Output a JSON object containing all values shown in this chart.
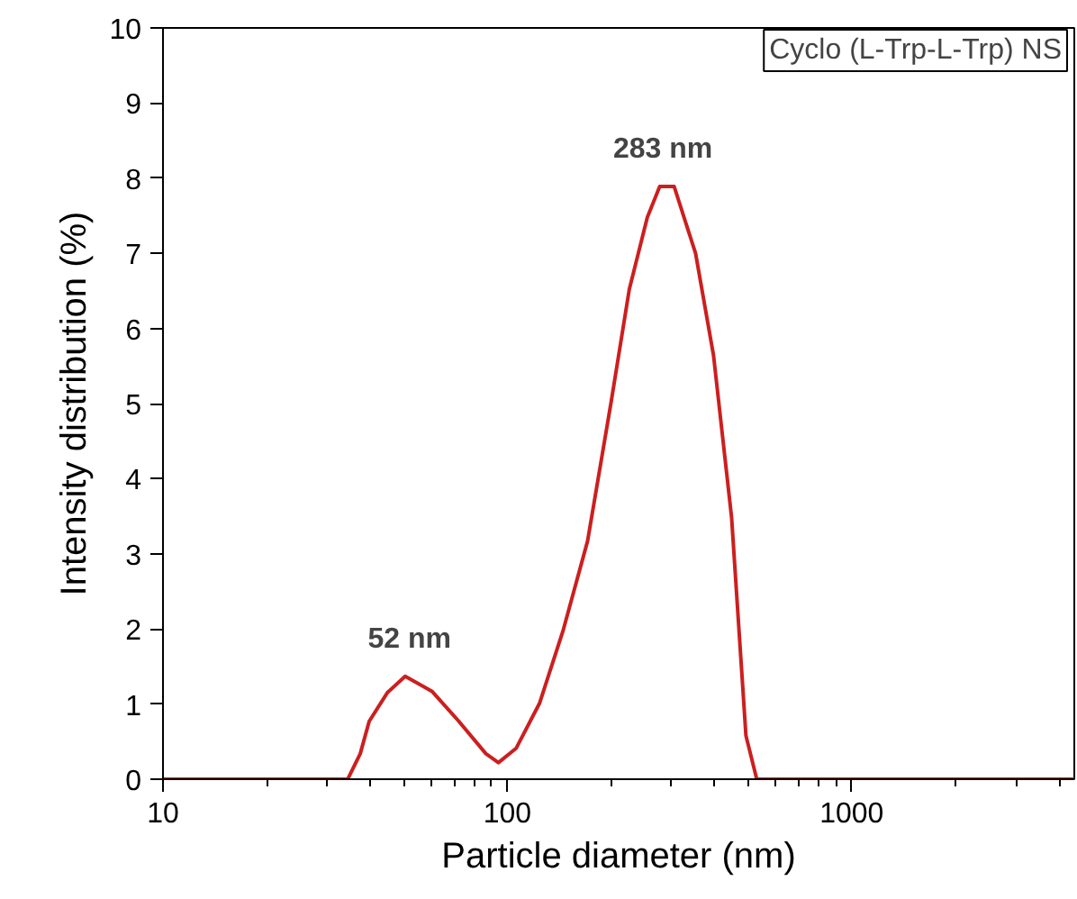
{
  "chart_data": {
    "type": "line",
    "xlabel": "Particle diameter (nm)",
    "ylabel": "Intensity distribution (%)",
    "log": "x",
    "x": [
      10,
      34.4,
      37.4,
      39.7,
      44.8,
      50.5,
      60.4,
      72.3,
      86.6,
      94.2,
      106,
      124,
      145,
      171,
      200,
      226,
      255,
      277,
      305,
      352,
      397,
      448,
      493,
      530,
      4430
    ],
    "series": [
      {
        "color": "#cc1f1f",
        "values": [
          0,
          0,
          0.34,
          0.77,
          1.15,
          1.37,
          1.17,
          0.77,
          0.34,
          0.22,
          0.41,
          1.01,
          1.97,
          3.17,
          5.01,
          6.52,
          7.48,
          7.89,
          7.89,
          7.0,
          5.64,
          3.48,
          0.58,
          0,
          0
        ]
      }
    ],
    "xlim": [
      10,
      4430
    ],
    "xticks": [
      10,
      100,
      1000
    ],
    "ylim": [
      0,
      10
    ],
    "yticks": [
      0,
      1,
      2,
      3,
      4,
      5,
      6,
      7,
      8,
      9,
      10
    ],
    "annotations": [
      {
        "text": "52 nm",
        "x": 52,
        "y": 1.37
      },
      {
        "text": "283 nm",
        "x": 283,
        "y": 7.89
      },
      "Cyclo (L-Trp-L-Trp) NS"
    ],
    "grid": false,
    "marker": "none",
    "line_style": "solid"
  }
}
